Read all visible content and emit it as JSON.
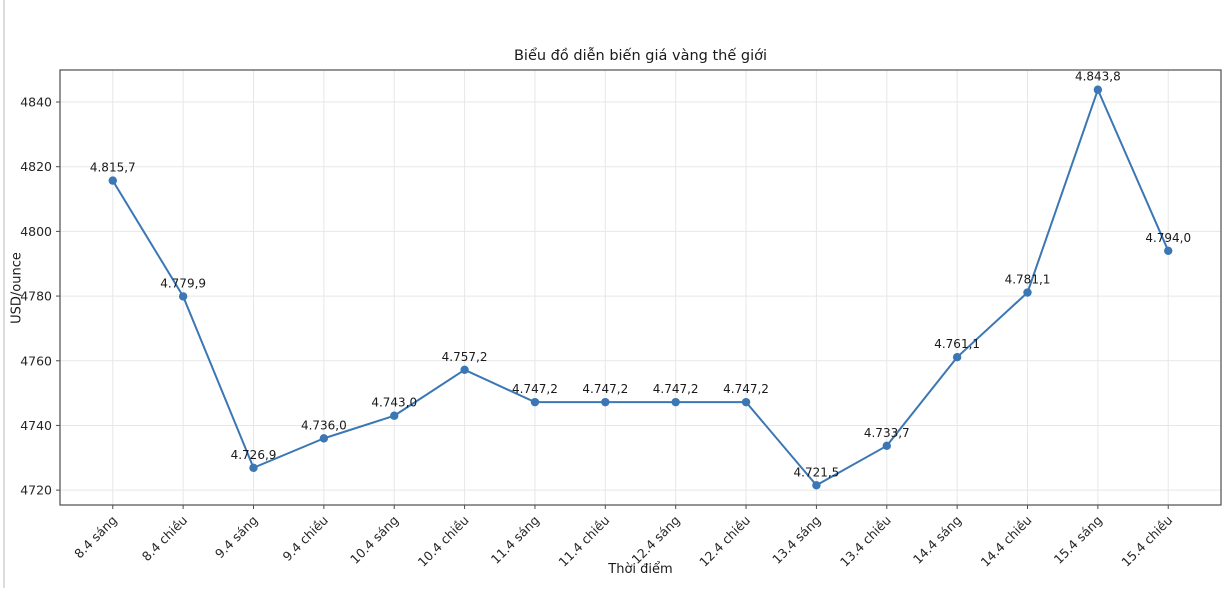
{
  "page": {
    "background": "#ffffff",
    "left_border_color": "#dcdcdc"
  },
  "chart_data": {
    "type": "line",
    "title": "Biểu đồ diễn biến giá vàng thế giới",
    "xlabel": "Thời điểm",
    "ylabel": "USD/ounce",
    "categories": [
      "8.4 sáng",
      "8.4 chiều",
      "9.4 sáng",
      "9.4 chiều",
      "10.4 sáng",
      "10.4 chiều",
      "11.4 sáng",
      "11.4 chiều",
      "12.4 sáng",
      "12.4 chiều",
      "13.4 sáng",
      "13.4 chiều",
      "14.4 sáng",
      "14.4 chiều",
      "15.4 sáng",
      "15.4 chiều"
    ],
    "series": [
      {
        "values": [
          4815.7,
          4779.9,
          4726.9,
          4736.0,
          4743.0,
          4757.2,
          4747.2,
          4747.2,
          4747.2,
          4747.2,
          4721.5,
          4733.7,
          4761.1,
          4781.1,
          4843.8,
          4794.0
        ],
        "point_labels": [
          "4.815,7",
          "4.779,9",
          "4.726,9",
          "4.736,0",
          "4.743,0",
          "4.757,2",
          "4.747,2",
          "4.747,2",
          "4.747,2",
          "4.747,2",
          "4.721,5",
          "4.733,7",
          "4.761,1",
          "4.781,1",
          "4.843,8",
          "4.794,0"
        ]
      }
    ],
    "y_ticks": [
      4720,
      4740,
      4760,
      4780,
      4800,
      4820,
      4840
    ],
    "ylim": [
      4715.4,
      4849.9
    ],
    "grid": true,
    "legend": "none",
    "x_tick_rotation": -45,
    "colors": {
      "line": "#3a77b4",
      "marker": "#3a77b4",
      "grid": "#e7e7e7",
      "spine": "#4d4d4d",
      "tick_text": "#262626",
      "point_label_text": "#1a1a1a"
    }
  }
}
